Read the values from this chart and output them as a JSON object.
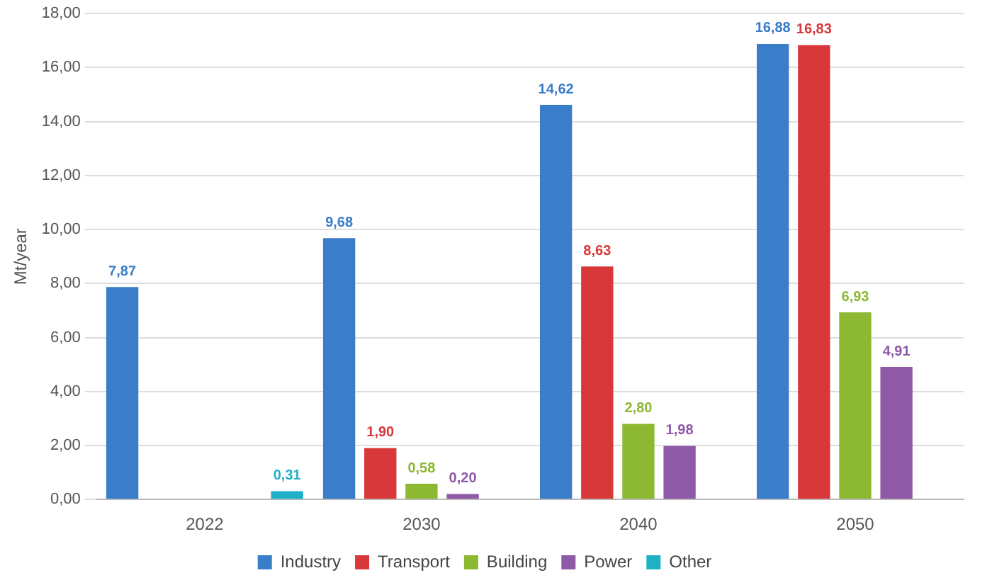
{
  "chart_data": {
    "type": "bar",
    "ylabel": "Mt/year",
    "categories": [
      "2022",
      "2030",
      "2040",
      "2050"
    ],
    "series": [
      {
        "name": "Industry",
        "color": "#3a7dc9",
        "values": [
          7.87,
          9.68,
          14.62,
          16.88
        ],
        "value_labels": [
          "7,87",
          "9,68",
          "14,62",
          "16,88"
        ]
      },
      {
        "name": "Transport",
        "color": "#d9383a",
        "values": [
          null,
          1.9,
          8.63,
          16.83
        ],
        "value_labels": [
          null,
          "1,90",
          "8,63",
          "16,83"
        ]
      },
      {
        "name": "Building",
        "color": "#8cb832",
        "values": [
          null,
          0.58,
          2.8,
          6.93
        ],
        "value_labels": [
          null,
          "0,58",
          "2,80",
          "6,93"
        ]
      },
      {
        "name": "Power",
        "color": "#8e5aa8",
        "values": [
          null,
          0.2,
          1.98,
          4.91
        ],
        "value_labels": [
          null,
          "0,20",
          "1,98",
          "4,91"
        ]
      },
      {
        "name": "Other",
        "color": "#1fb0c8",
        "values": [
          0.31,
          null,
          null,
          null
        ],
        "value_labels": [
          "0,31",
          null,
          null,
          null
        ]
      }
    ],
    "ylim": [
      0,
      18
    ],
    "yticks": [
      {
        "value": 0,
        "label": "0,00"
      },
      {
        "value": 2,
        "label": "2,00"
      },
      {
        "value": 4,
        "label": "4,00"
      },
      {
        "value": 6,
        "label": "6,00"
      },
      {
        "value": 8,
        "label": "8,00"
      },
      {
        "value": 10,
        "label": "10,00"
      },
      {
        "value": 12,
        "label": "12,00"
      },
      {
        "value": 14,
        "label": "14,00"
      },
      {
        "value": 16,
        "label": "16,00"
      },
      {
        "value": 18,
        "label": "18,00"
      }
    ],
    "grid": "y",
    "legend": "bottom"
  }
}
